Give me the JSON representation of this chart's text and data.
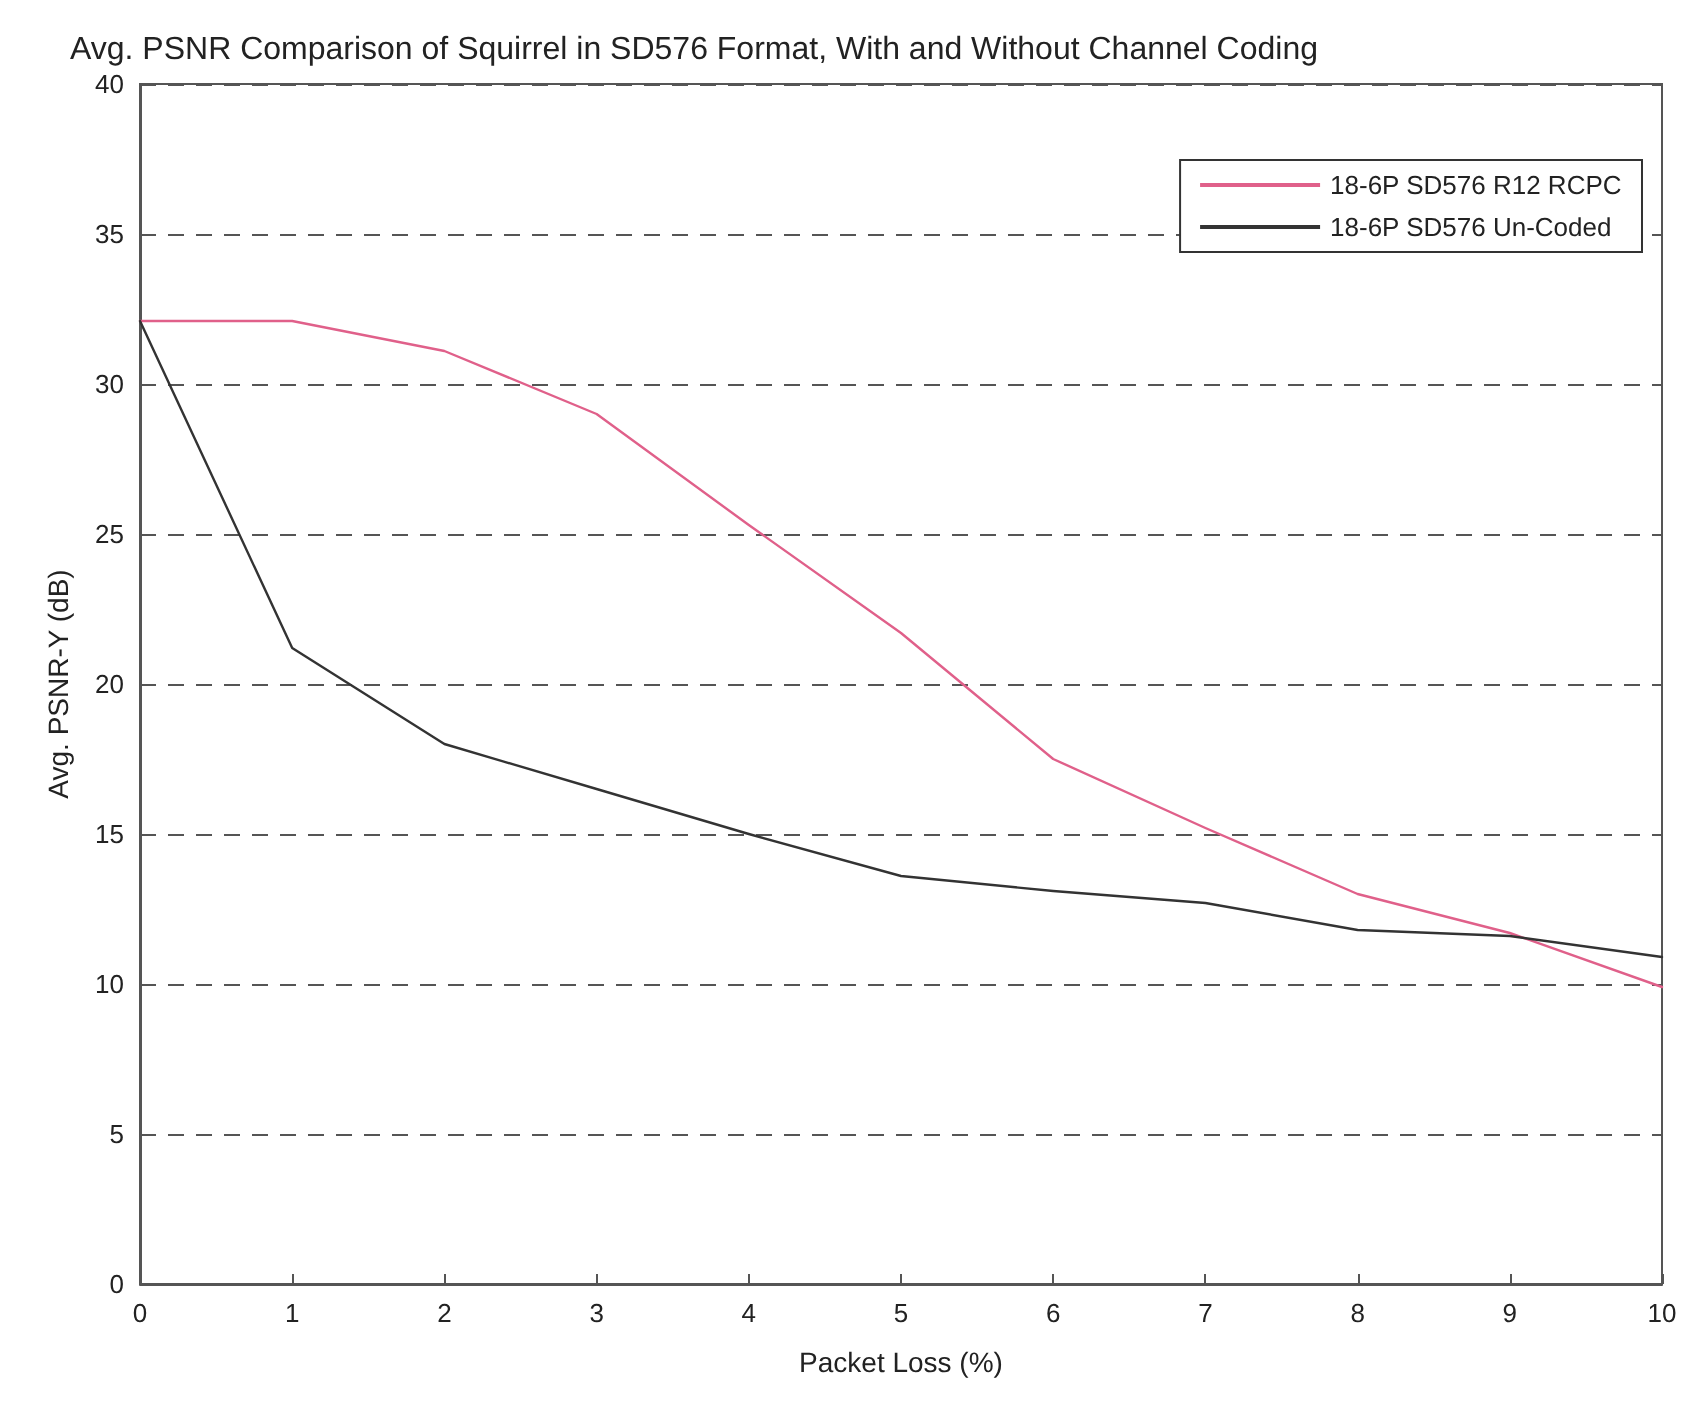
{
  "chart_data": {
    "type": "line",
    "title": "Avg. PSNR Comparison of Squirrel in SD576 Format, With and Without Channel Coding",
    "xlabel": "Packet Loss (%)",
    "ylabel": "Avg. PSNR-Y (dB)",
    "x": [
      0,
      1,
      2,
      3,
      4,
      5,
      6,
      7,
      8,
      9,
      10
    ],
    "series": [
      {
        "name": "18-6P SD576 R12 RCPC",
        "color": "#e0608a",
        "values": [
          32.1,
          32.1,
          31.1,
          29.0,
          25.3,
          21.7,
          17.5,
          15.2,
          13.0,
          11.7,
          9.9
        ]
      },
      {
        "name": "18-6P SD576 Un-Coded",
        "color": "#333333",
        "values": [
          32.1,
          21.2,
          18.0,
          16.5,
          15.0,
          13.6,
          13.1,
          12.7,
          11.8,
          11.6,
          10.9
        ]
      }
    ],
    "xlim": [
      0,
      10
    ],
    "xticks": [
      0,
      1,
      2,
      3,
      4,
      5,
      6,
      7,
      8,
      9,
      10
    ],
    "ylim": [
      0,
      40
    ],
    "yticks": [
      0,
      5,
      10,
      15,
      20,
      25,
      30,
      35,
      40
    ],
    "grid": "y",
    "legend": "top right",
    "marker": "none",
    "line_style": "solid"
  }
}
